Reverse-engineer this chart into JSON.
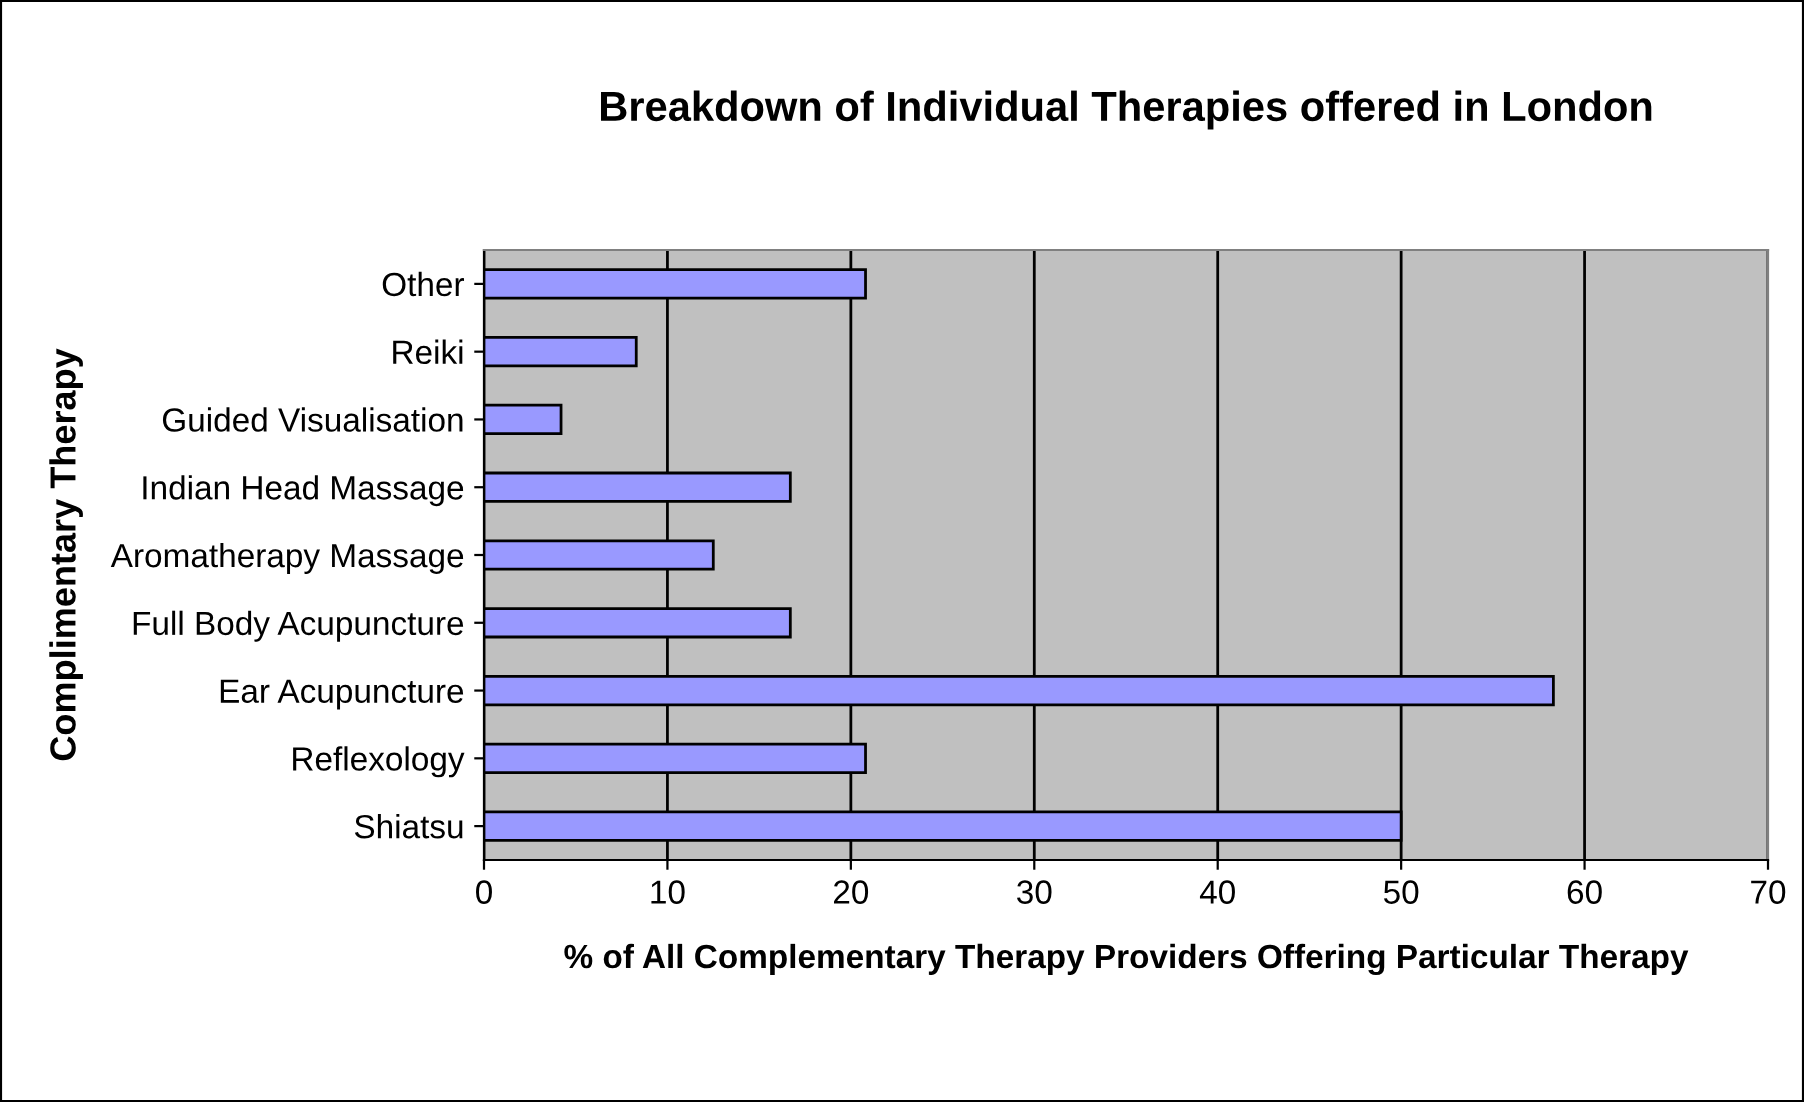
{
  "chart_data": {
    "type": "bar",
    "orientation": "horizontal",
    "title": "Breakdown of Individual Therapies offered in London",
    "xlabel": "% of All Complementary Therapy Providers Offering Particular Therapy",
    "ylabel": "Complimentary Therapy",
    "categories": [
      "Other",
      "Reiki",
      "Guided Visualisation",
      "Indian Head Massage",
      "Aromatherapy Massage",
      "Full Body Acupuncture",
      "Ear Acupuncture",
      "Reflexology",
      "Shiatsu"
    ],
    "values": [
      20.8,
      8.3,
      4.2,
      16.7,
      12.5,
      16.7,
      58.3,
      20.8,
      50
    ],
    "color": "#9999ff",
    "xlim": [
      0,
      70
    ],
    "xticks": [
      0,
      10,
      20,
      30,
      40,
      50,
      60,
      70
    ],
    "grid": "x",
    "legend": false
  }
}
